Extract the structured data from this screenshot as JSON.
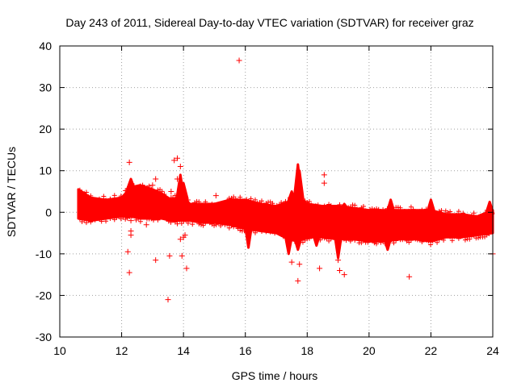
{
  "chart_data": {
    "type": "scatter",
    "title": "Day 243 of 2011, Sidereal Day-to-day VTEC variation (SDTVAR) for receiver graz",
    "xlabel": "GPS time / hours",
    "ylabel": "SDTVAR / TECUs",
    "xlim": [
      10,
      24
    ],
    "ylim": [
      -30,
      40
    ],
    "xticks": [
      "10",
      "12",
      "14",
      "16",
      "18",
      "20",
      "22",
      "24"
    ],
    "yticks": [
      "-30",
      "-20",
      "-10",
      "0",
      "10",
      "20",
      "30",
      "40"
    ],
    "grid": true,
    "marker": "+",
    "series_color": "#ff0000",
    "band": {
      "comment": "dense scatter band: [hour, lower TECU, upper TECU]",
      "envelope": [
        [
          10.6,
          -1.5,
          5.5
        ],
        [
          11.0,
          -2.0,
          3.5
        ],
        [
          11.5,
          -1.5,
          3.0
        ],
        [
          12.0,
          -1.0,
          3.5
        ],
        [
          12.3,
          -1.0,
          6.0
        ],
        [
          12.6,
          -1.5,
          6.5
        ],
        [
          13.0,
          -1.5,
          5.5
        ],
        [
          13.3,
          -1.5,
          4.5
        ],
        [
          13.6,
          -2.0,
          3.0
        ],
        [
          14.0,
          -2.0,
          4.0
        ],
        [
          14.2,
          -2.0,
          2.0
        ],
        [
          14.6,
          -2.5,
          2.0
        ],
        [
          15.0,
          -2.5,
          2.0
        ],
        [
          15.5,
          -3.0,
          3.0
        ],
        [
          16.0,
          -4.0,
          3.0
        ],
        [
          16.5,
          -4.5,
          2.0
        ],
        [
          17.0,
          -5.0,
          1.5
        ],
        [
          17.4,
          -6.5,
          2.5
        ],
        [
          17.7,
          -7.0,
          4.0
        ],
        [
          18.0,
          -6.0,
          2.0
        ],
        [
          18.5,
          -6.0,
          1.5
        ],
        [
          19.0,
          -6.5,
          1.5
        ],
        [
          19.5,
          -6.5,
          1.0
        ],
        [
          20.0,
          -7.0,
          0.5
        ],
        [
          20.5,
          -7.0,
          0.5
        ],
        [
          21.0,
          -6.5,
          0.5
        ],
        [
          21.5,
          -6.5,
          0.5
        ],
        [
          22.0,
          -7.0,
          0.5
        ],
        [
          22.5,
          -6.0,
          -0.5
        ],
        [
          23.0,
          -6.0,
          -0.5
        ],
        [
          23.5,
          -5.5,
          -1.0
        ],
        [
          24.0,
          -5.0,
          0.5
        ]
      ],
      "spikes": [
        [
          12.3,
          8.0
        ],
        [
          13.9,
          9.0
        ],
        [
          14.0,
          7.0
        ],
        [
          17.7,
          11.5
        ],
        [
          17.75,
          10.0
        ],
        [
          17.5,
          5.0
        ],
        [
          20.7,
          3.0
        ],
        [
          22.0,
          3.0
        ],
        [
          23.9,
          2.5
        ],
        [
          19.2,
          2.0
        ],
        [
          15.8,
          2.0
        ]
      ],
      "dips": [
        [
          16.1,
          -8.5
        ],
        [
          17.4,
          -10.0
        ],
        [
          17.7,
          -9.0
        ],
        [
          19.0,
          -11.0
        ],
        [
          20.6,
          -9.0
        ],
        [
          18.3,
          -8.0
        ]
      ]
    },
    "outliers": [
      [
        12.25,
        12.0
      ],
      [
        12.2,
        -9.5
      ],
      [
        12.25,
        -14.5
      ],
      [
        12.3,
        -5.5
      ],
      [
        12.3,
        -4.5
      ],
      [
        12.3,
        -2.0
      ],
      [
        12.8,
        -3.0
      ],
      [
        13.0,
        6.5
      ],
      [
        13.1,
        8.0
      ],
      [
        13.1,
        -11.5
      ],
      [
        13.5,
        -21.0
      ],
      [
        13.55,
        -10.5
      ],
      [
        13.6,
        5.0
      ],
      [
        13.6,
        3.5
      ],
      [
        13.65,
        3.0
      ],
      [
        13.7,
        12.5
      ],
      [
        13.8,
        13.0
      ],
      [
        13.8,
        8.0
      ],
      [
        13.9,
        11.0
      ],
      [
        13.9,
        -6.5
      ],
      [
        14.0,
        -6.0
      ],
      [
        13.95,
        -10.5
      ],
      [
        14.05,
        -5.5
      ],
      [
        14.1,
        -13.5
      ],
      [
        15.05,
        4.0
      ],
      [
        15.8,
        36.5
      ],
      [
        17.5,
        -12.0
      ],
      [
        17.7,
        -16.5
      ],
      [
        17.75,
        -12.5
      ],
      [
        18.4,
        -13.5
      ],
      [
        18.55,
        9.0
      ],
      [
        18.55,
        7.0
      ],
      [
        19.0,
        -11.5
      ],
      [
        19.05,
        -14.0
      ],
      [
        19.2,
        -15.0
      ],
      [
        21.3,
        -15.5
      ],
      [
        24.0,
        -10.0
      ]
    ]
  }
}
